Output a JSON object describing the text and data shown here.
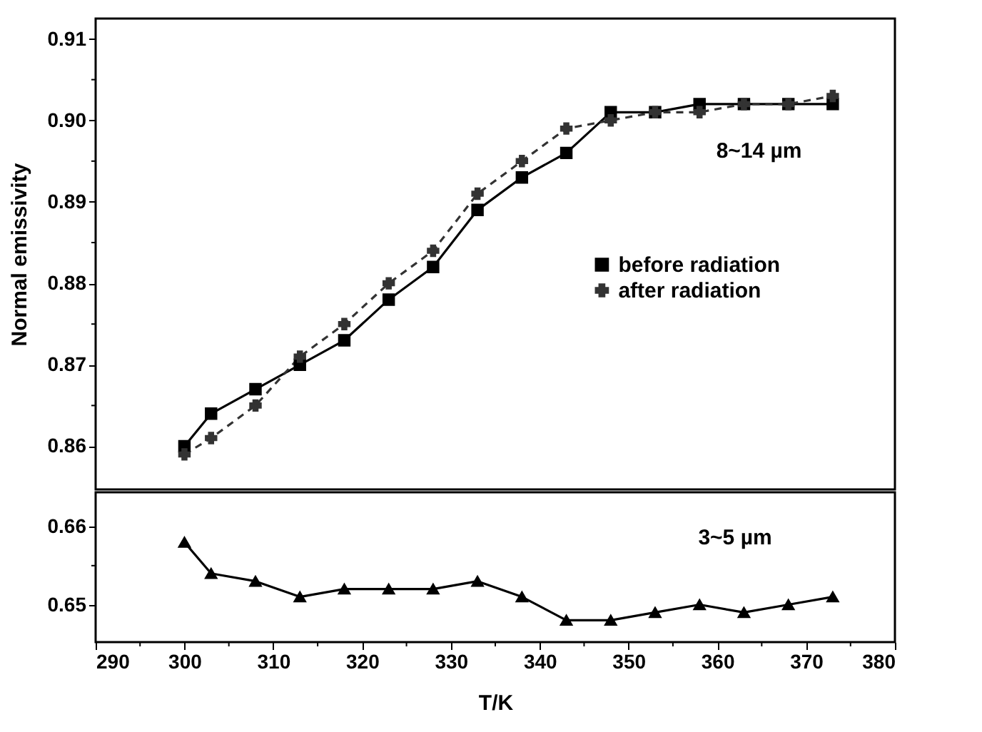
{
  "chart_data": [
    {
      "type": "line",
      "ylabel": "Normal emissivity",
      "x": [
        300,
        303,
        308,
        313,
        318,
        323,
        328,
        333,
        338,
        343,
        348,
        353,
        358,
        363,
        368,
        373
      ],
      "xlim": [
        290,
        380
      ],
      "ylim": [
        0.8547,
        0.9125
      ],
      "yticks": [
        0.86,
        {
          "value": 0.865,
          "label": null
        },
        0.87,
        {
          "value": 0.875,
          "label": null
        },
        0.88,
        {
          "value": 0.885,
          "label": null
        },
        0.89,
        {
          "value": 0.895,
          "label": null
        },
        {
          "value": 0.9,
          "label": "0.90"
        },
        {
          "value": 0.905,
          "label": null
        },
        0.91
      ],
      "tick_labels": "y",
      "grid": false,
      "legend": "right",
      "annotations": [
        "8~14 µm"
      ],
      "series": [
        {
          "name": "before radiation",
          "color": "#000000",
          "marker": "square",
          "line_style": "solid",
          "values": [
            0.86,
            0.864,
            0.867,
            0.87,
            0.873,
            0.878,
            0.882,
            0.889,
            0.893,
            0.896,
            0.901,
            0.901,
            0.902,
            0.902,
            0.902,
            0.902
          ]
        },
        {
          "name": "after  radiation",
          "color": "#333333",
          "marker": "cross",
          "line_style": "dashed",
          "values": [
            0.859,
            0.861,
            0.865,
            0.871,
            0.875,
            0.88,
            0.884,
            0.891,
            0.895,
            0.899,
            0.9,
            0.901,
            0.901,
            0.902,
            0.902,
            0.903
          ]
        }
      ]
    },
    {
      "type": "line",
      "xlabel": "T/K",
      "x": [
        300,
        303,
        308,
        313,
        318,
        323,
        328,
        333,
        338,
        343,
        348,
        353,
        358,
        363,
        368,
        373
      ],
      "xlim": [
        290,
        380
      ],
      "xticks": [
        290,
        {
          "value": 295,
          "label": null
        },
        300,
        {
          "value": 305,
          "label": null
        },
        310,
        {
          "value": 315,
          "label": null
        },
        320,
        {
          "value": 325,
          "label": null
        },
        330,
        {
          "value": 335,
          "label": null
        },
        340,
        {
          "value": 345,
          "label": null
        },
        350,
        {
          "value": 355,
          "label": null
        },
        360,
        {
          "value": 365,
          "label": null
        },
        370,
        {
          "value": 375,
          "label": null
        },
        380
      ],
      "ylim": [
        0.6452,
        0.6644
      ],
      "yticks": [
        0.65,
        {
          "value": 0.655,
          "label": null
        },
        0.66
      ],
      "grid": false,
      "annotations": [
        "3~5 µm"
      ],
      "series": [
        {
          "color": "#000000",
          "marker": "triangle",
          "line_style": "solid",
          "values": [
            0.658,
            0.654,
            0.653,
            0.651,
            0.652,
            0.652,
            0.652,
            0.653,
            0.651,
            0.648,
            0.648,
            0.649,
            0.65,
            0.649,
            0.65,
            0.651
          ]
        }
      ]
    }
  ]
}
